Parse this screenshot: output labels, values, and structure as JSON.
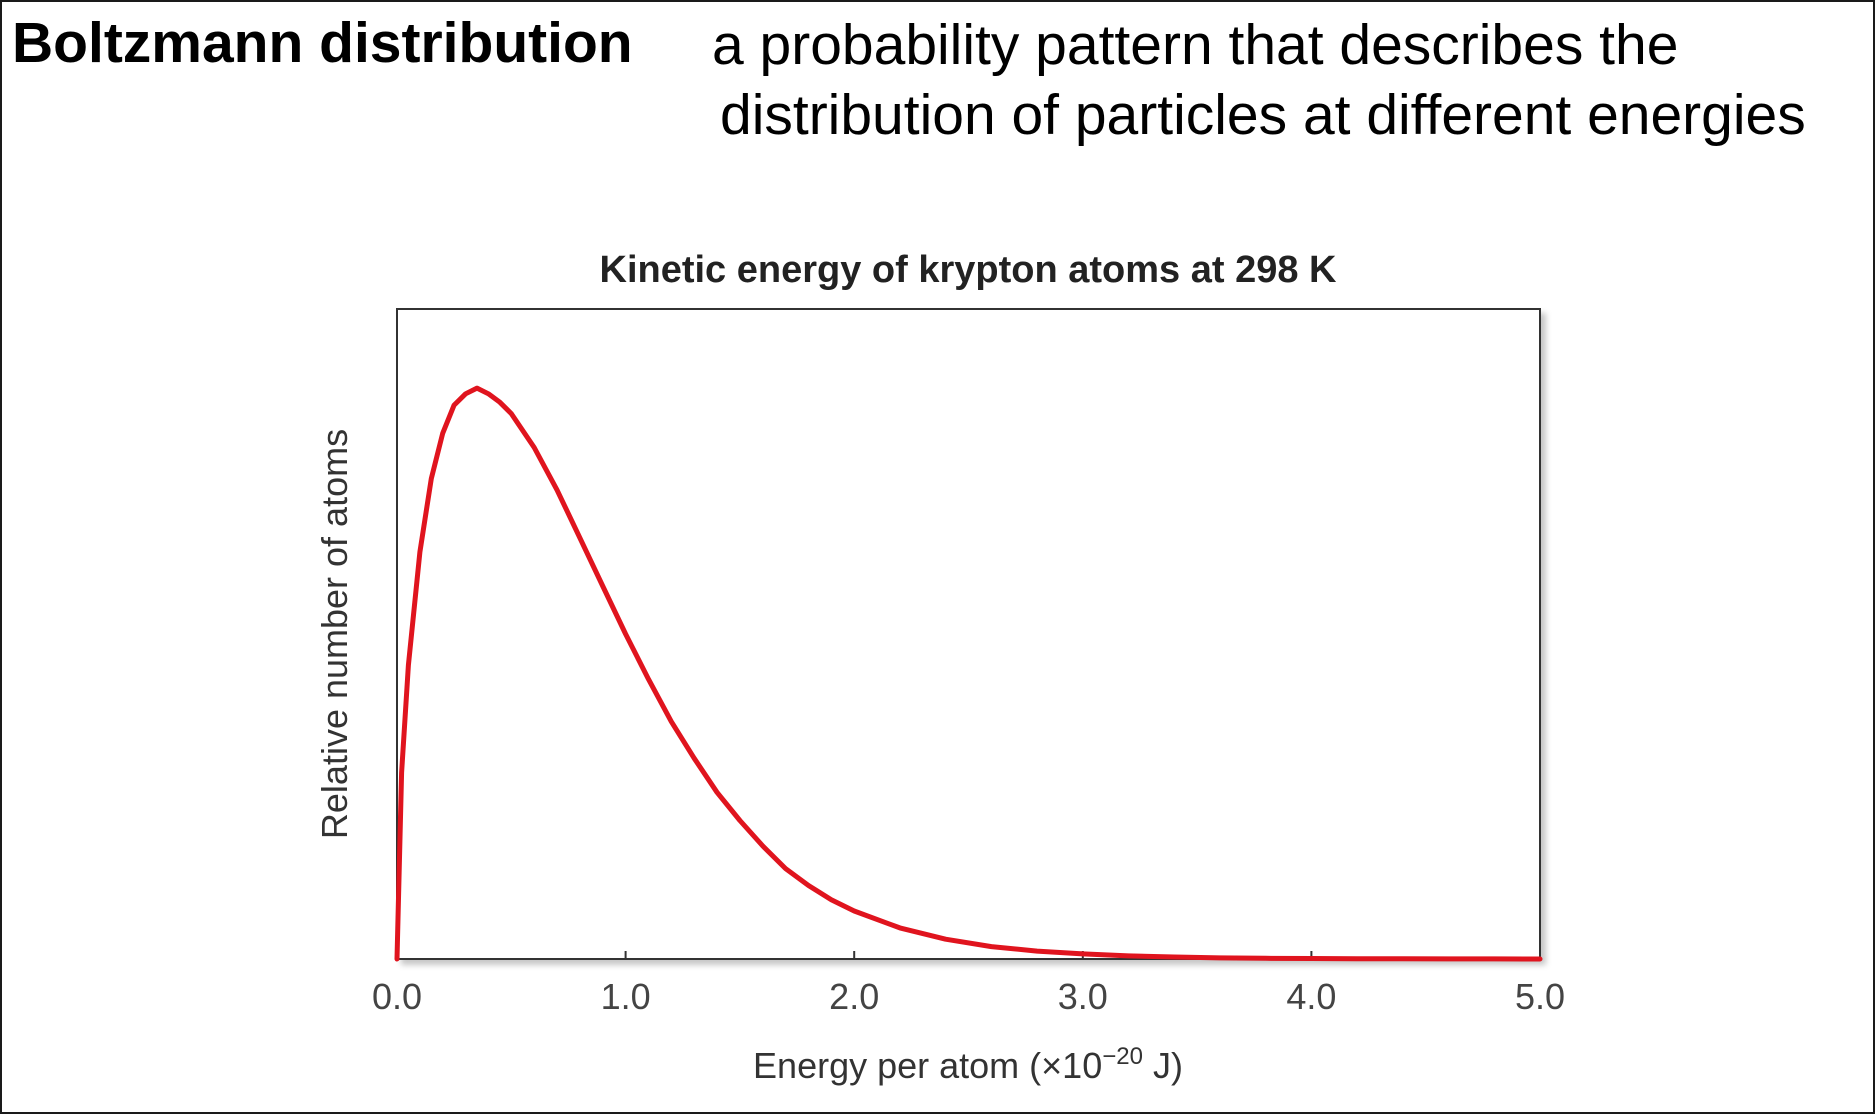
{
  "slide": {
    "term": "Boltzmann distribution",
    "definition": [
      "a probability pattern that describes the",
      "distribution of particles at different energies"
    ]
  },
  "chart_data": {
    "type": "line",
    "title": "Kinetic energy of krypton atoms at 298 K",
    "xlabel_prefix": "Energy per atom (×10",
    "xlabel_exponent": "−20",
    "xlabel_suffix": " J)",
    "ylabel": "Relative number of atoms",
    "xlim": [
      0,
      5.0
    ],
    "ylim": [
      0,
      1.15
    ],
    "xticks": [
      0,
      1.0,
      2.0,
      3.0,
      4.0,
      5.0
    ],
    "xtick_labels": [
      "0.0",
      "1.0",
      "2.0",
      "3.0",
      "4.0",
      "5.0"
    ],
    "grid": false,
    "line_color": "#e0141e",
    "series": [
      {
        "x": [
          0.0,
          0.02,
          0.05,
          0.1,
          0.15,
          0.2,
          0.25,
          0.3,
          0.35,
          0.4,
          0.45,
          0.5,
          0.6,
          0.7,
          0.8,
          0.9,
          1.0,
          1.1,
          1.2,
          1.3,
          1.4,
          1.5,
          1.6,
          1.7,
          1.8,
          1.9,
          2.0,
          2.2,
          2.4,
          2.6,
          2.8,
          3.0,
          3.2,
          3.4,
          3.6,
          3.8,
          4.0,
          4.2,
          4.4,
          4.6,
          4.8,
          5.0
        ],
        "y": [
          0.0,
          0.33,
          0.52,
          0.72,
          0.85,
          0.93,
          0.98,
          1.0,
          1.01,
          1.0,
          0.985,
          0.965,
          0.905,
          0.83,
          0.745,
          0.66,
          0.575,
          0.495,
          0.42,
          0.355,
          0.295,
          0.245,
          0.2,
          0.16,
          0.13,
          0.105,
          0.085,
          0.055,
          0.035,
          0.022,
          0.014,
          0.009,
          0.0055,
          0.0035,
          0.002,
          0.0012,
          0.0008,
          0.0005,
          0.0003,
          0.0002,
          0.0001,
          0.0
        ]
      }
    ]
  }
}
